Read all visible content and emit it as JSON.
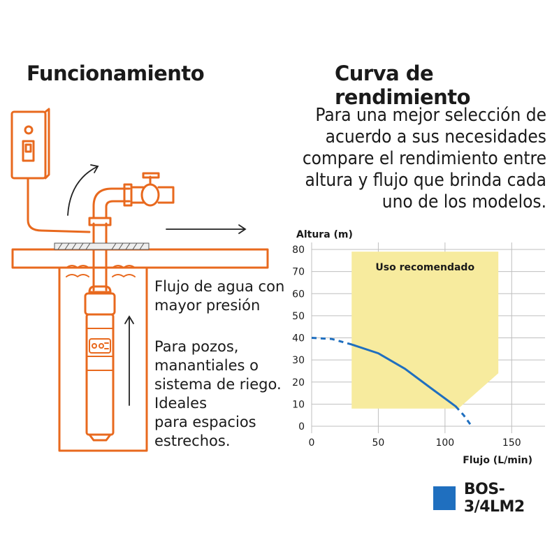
{
  "left_section": {
    "title": "Funcionamiento",
    "flow_lines": [
      "Flujo de agua con",
      "mayor presión"
    ],
    "uses_lines": [
      "Para pozos,",
      "manantiales o",
      "sistema de riego.",
      "Ideales",
      "para espacios",
      "estrechos."
    ]
  },
  "right_section": {
    "title": "Curva de rendimiento",
    "intro_lines": [
      "Para una mejor selección de",
      "acuerdo a sus necesidades",
      "compare el rendimiento entre",
      "altura y flujo que brinda cada",
      "uno de los modelos."
    ]
  },
  "colors": {
    "accent": "#e8691e",
    "curve": "#1f6fbf",
    "region": "#f7eb9e",
    "grid": "#bfbfbf"
  },
  "chart_data": {
    "type": "line",
    "xlabel": "Flujo (L/min)",
    "ylabel": "Altura (m)",
    "xlim": [
      0,
      175
    ],
    "ylim": [
      0,
      80
    ],
    "x_ticks": [
      0,
      50,
      100,
      150
    ],
    "y_ticks": [
      0,
      10,
      20,
      30,
      40,
      50,
      60,
      70,
      80
    ],
    "grid": true,
    "annotation": "Uso recomendado",
    "recommended_region": [
      [
        30,
        8
      ],
      [
        30,
        79
      ],
      [
        140,
        79
      ],
      [
        140,
        24
      ],
      [
        110,
        8
      ]
    ],
    "series": [
      {
        "name": "BOS-3/4LM2",
        "solid": [
          [
            30,
            37
          ],
          [
            50,
            33
          ],
          [
            70,
            26
          ],
          [
            90,
            17
          ],
          [
            108,
            9
          ]
        ],
        "dashed_left": [
          [
            0,
            40
          ],
          [
            15,
            39.5
          ],
          [
            30,
            37
          ]
        ],
        "dashed_right": [
          [
            108,
            9
          ],
          [
            114,
            5
          ],
          [
            120,
            0
          ]
        ]
      }
    ],
    "legend": "bottom-right"
  }
}
